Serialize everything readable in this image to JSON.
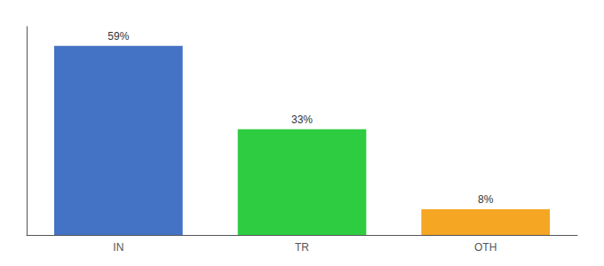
{
  "chart_data": {
    "type": "bar",
    "categories": [
      "IN",
      "TR",
      "OTH"
    ],
    "values": [
      59,
      33,
      8
    ],
    "value_labels": [
      "59%",
      "33%",
      "8%"
    ],
    "colors": [
      "#4472c4",
      "#2ecc40",
      "#f5a623"
    ],
    "ylim": [
      0,
      65
    ],
    "grid": false,
    "data_labels": true,
    "tick_labels": "x"
  }
}
